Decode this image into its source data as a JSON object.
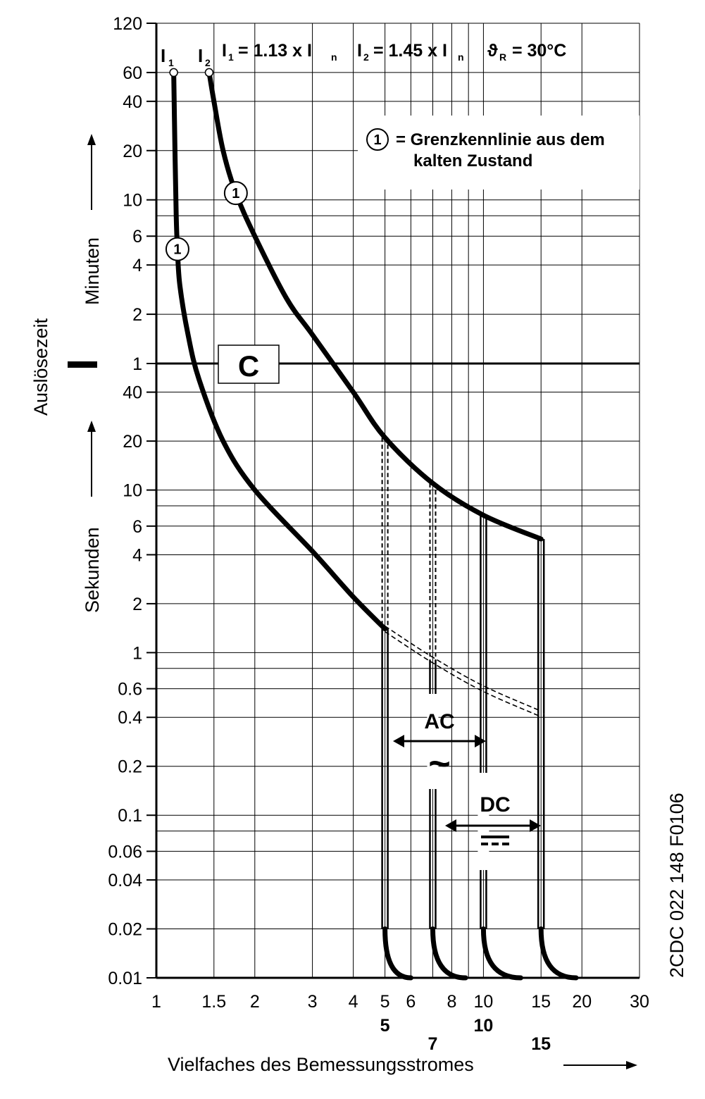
{
  "chart_data": {
    "type": "line",
    "title": "",
    "xlabel": "Vielfaches des Bemessungsstromes",
    "ylabel": "Auslösezeit",
    "ylabel_minutes": "Minuten",
    "ylabel_seconds": "Sekunden",
    "x_scale": "log",
    "y_scale": "log",
    "xlim": [
      1,
      30
    ],
    "y_minutes_range": [
      1,
      120
    ],
    "y_seconds_range": [
      0.01,
      60
    ],
    "x_ticks": [
      "1",
      "1.5",
      "2",
      "3",
      "4",
      "5",
      "6",
      "8",
      "10",
      "15",
      "20",
      "30"
    ],
    "x_ticks_bold": [
      "5",
      "7",
      "10",
      "15"
    ],
    "y_ticks_minutes": [
      "120",
      "60",
      "40",
      "20",
      "10",
      "6",
      "4",
      "2",
      "1"
    ],
    "y_ticks_seconds": [
      "40",
      "20",
      "10",
      "6",
      "4",
      "2",
      "1",
      "0.6",
      "0.4",
      "0.2",
      "0.1",
      "0.06",
      "0.04",
      "0.02",
      "0.01"
    ],
    "grid": true,
    "legend_text": {
      "i1_label": "I",
      "i1_sub": "1",
      "i2_label": "I",
      "i2_sub": "2",
      "formula_i1": "I",
      "formula_i1_sub": "1",
      "formula_i1_rest": " = 1.13 x I",
      "formula_i1_rest_sub": "n",
      "formula_i2": "I",
      "formula_i2_sub": "2",
      "formula_i2_rest": " = 1.45 x I",
      "formula_i2_rest_sub": "n",
      "formula_theta": "ϑ",
      "formula_theta_sub": "R",
      "formula_theta_rest": " = 30°C",
      "marker_symbol": "1",
      "note_line1": "= Grenzkennlinie aus dem",
      "note_line2": "kalten Zustand"
    },
    "characteristic": "C",
    "annotations": {
      "ac_label": "AC",
      "ac_symbol": "~",
      "dc_label": "DC"
    },
    "series": [
      {
        "name": "I1",
        "points": [
          [
            1.13,
            3600
          ],
          [
            1.14,
            1200
          ],
          [
            1.15,
            480
          ],
          [
            1.16,
            300
          ],
          [
            1.18,
            180
          ],
          [
            1.25,
            90
          ],
          [
            1.35,
            48
          ],
          [
            1.6,
            20
          ],
          [
            2.0,
            10
          ],
          [
            3.0,
            4.2
          ],
          [
            4.0,
            2.2
          ],
          [
            5.0,
            1.4
          ]
        ]
      },
      {
        "name": "I2",
        "points": [
          [
            1.45,
            3600
          ],
          [
            1.5,
            2400
          ],
          [
            1.6,
            1200
          ],
          [
            1.75,
            660
          ],
          [
            2.0,
            360
          ],
          [
            2.5,
            150
          ],
          [
            3.0,
            90
          ],
          [
            4.0,
            40
          ],
          [
            5.0,
            21
          ],
          [
            7.0,
            11
          ],
          [
            10.0,
            7
          ],
          [
            15.0,
            5
          ]
        ]
      },
      {
        "name": "I1 extension",
        "points": [
          [
            5.0,
            1.4
          ],
          [
            7.0,
            0.9
          ],
          [
            10.0,
            0.6
          ],
          [
            15.0,
            0.42
          ]
        ]
      }
    ],
    "instantaneous_limits": [
      5,
      7,
      10,
      15
    ]
  },
  "side_code": "2CDC 022 148 F0106"
}
